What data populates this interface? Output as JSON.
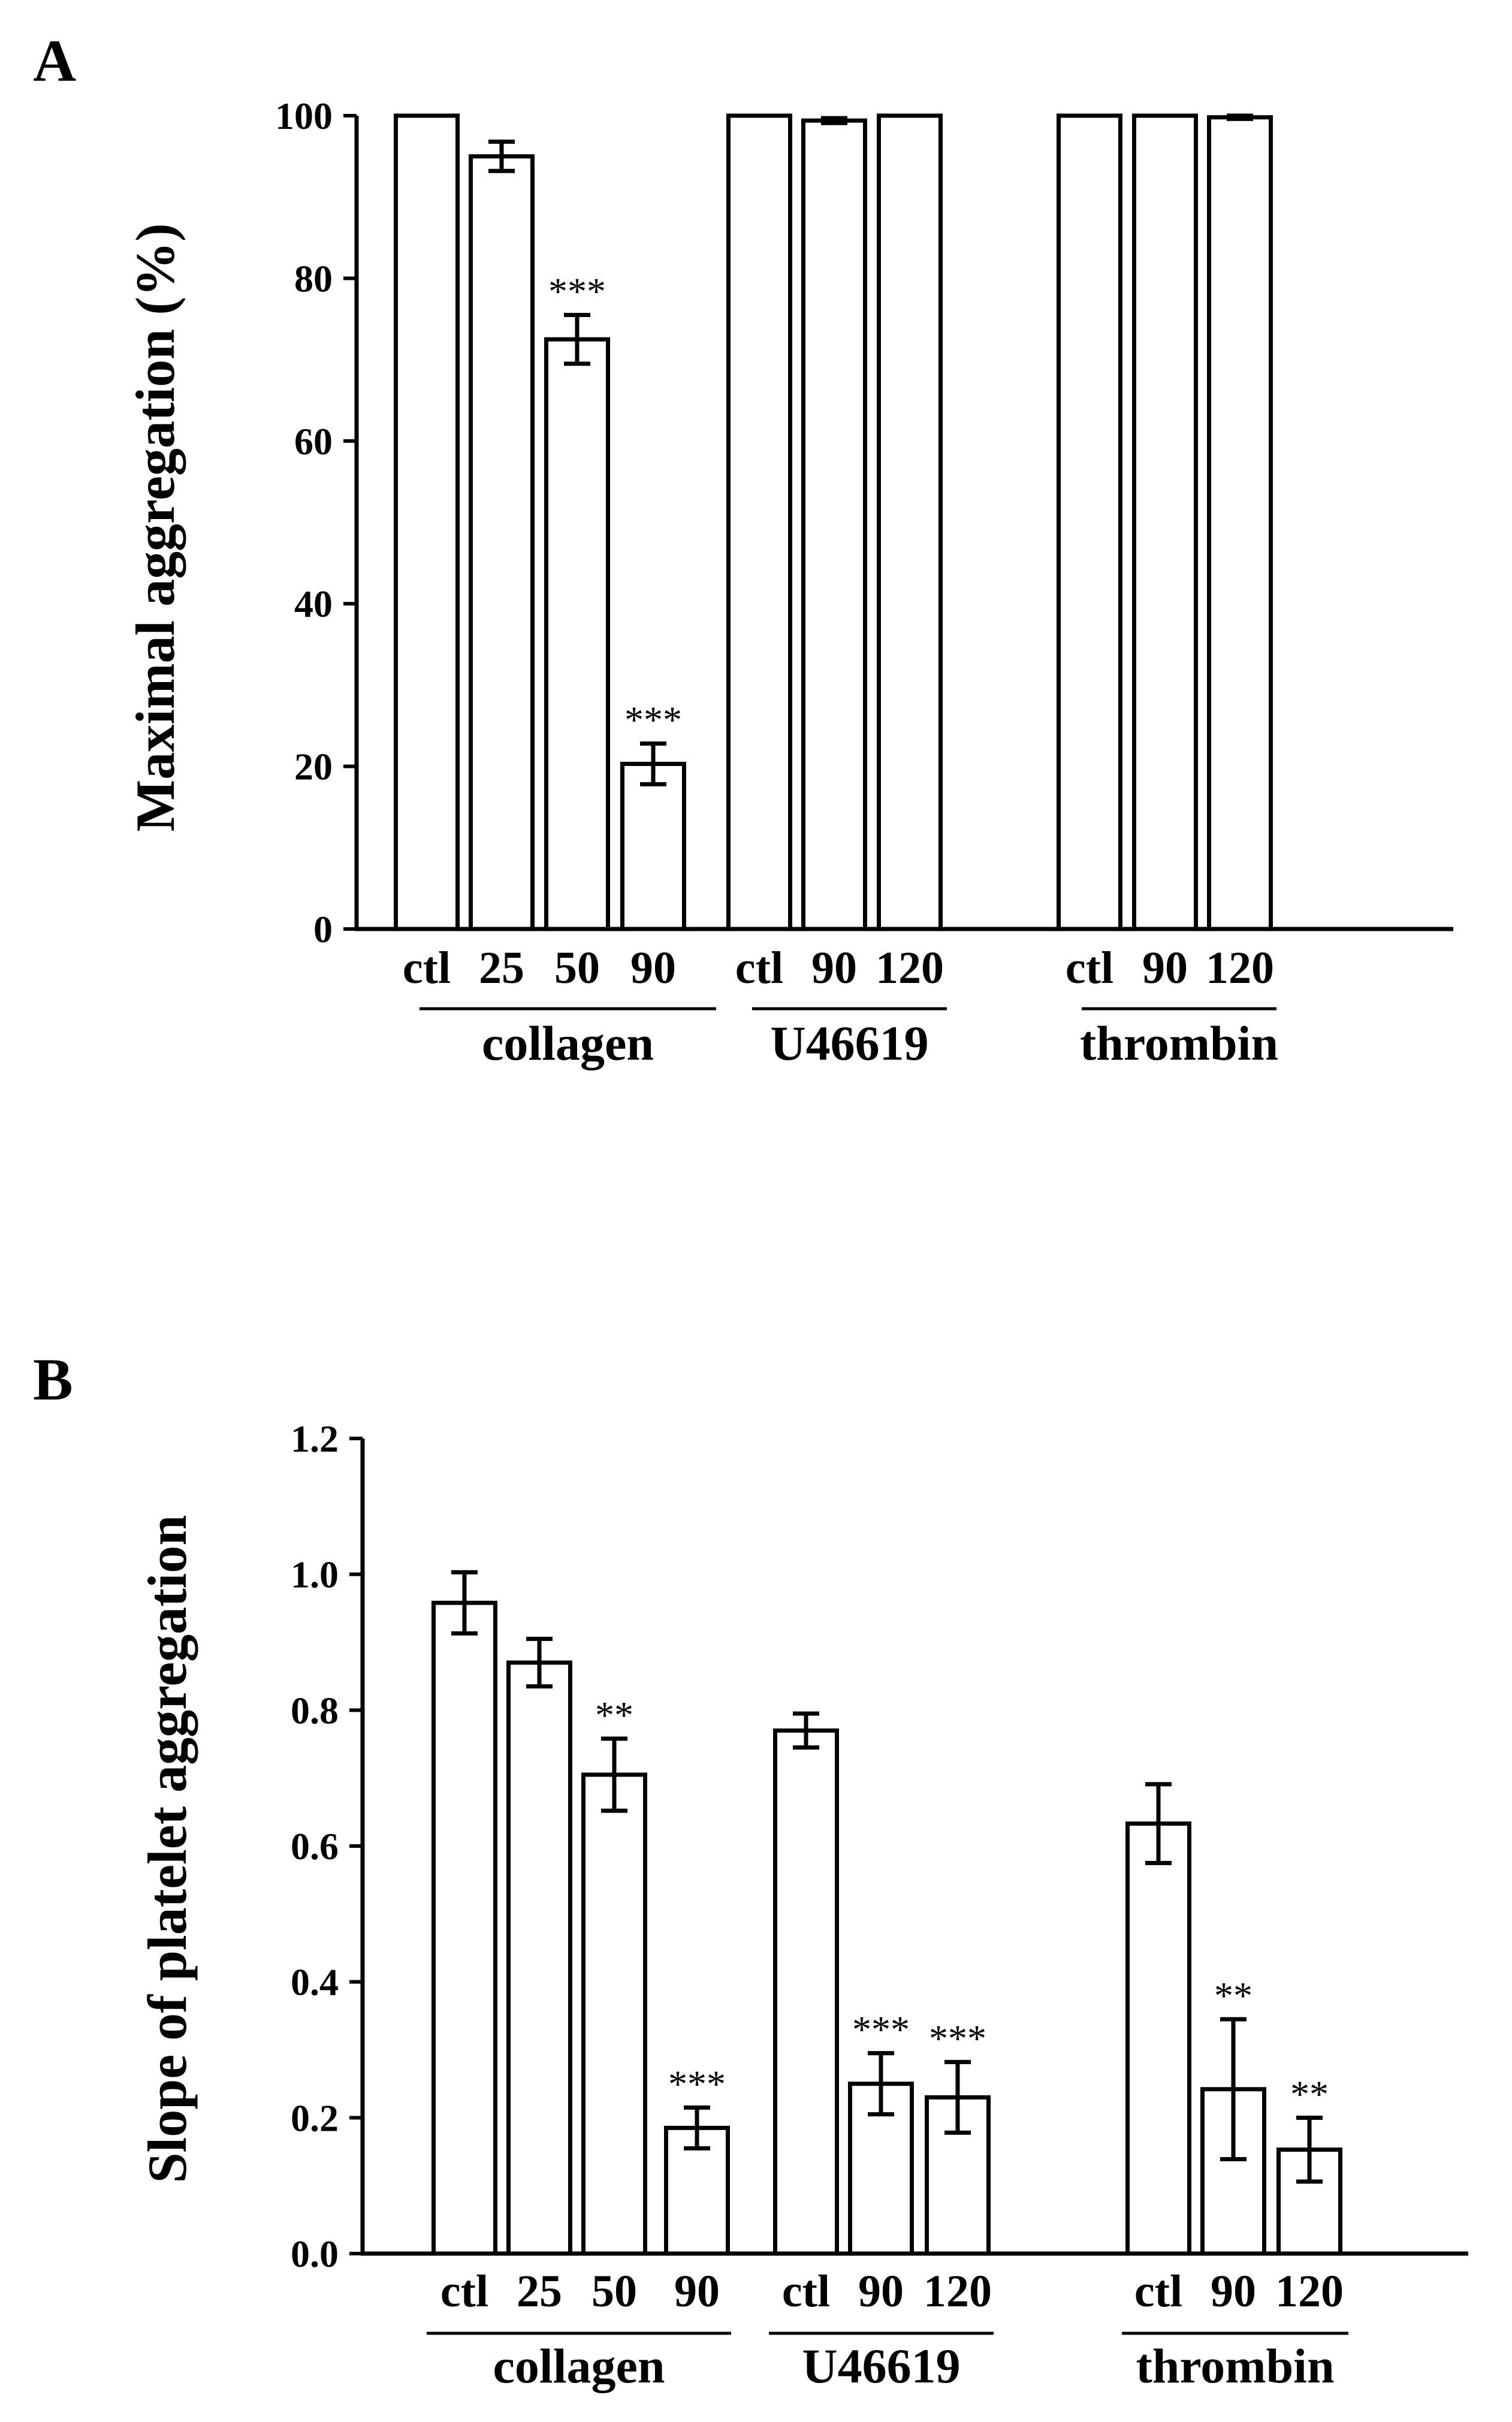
{
  "chart_data": [
    {
      "type": "bar",
      "panel_label": "A",
      "ylabel": "Maximal aggregation (%)",
      "xlabel": "",
      "ylim": [
        0,
        100
      ],
      "yticks": [
        "0",
        "20",
        "40",
        "60",
        "80",
        "100"
      ],
      "ytick_values": [
        0,
        20,
        40,
        60,
        80,
        100
      ],
      "groups": [
        {
          "name": "collagen",
          "categories": [
            "ctl",
            "25",
            "50",
            "90"
          ],
          "values": [
            100,
            95,
            72.5,
            20.3
          ],
          "errors": [
            0,
            1.8,
            3,
            2.5
          ],
          "significance": [
            "",
            "",
            "***",
            "***"
          ]
        },
        {
          "name": "U46619",
          "categories": [
            "ctl",
            "90",
            "120"
          ],
          "values": [
            100,
            99.4,
            100
          ],
          "errors": [
            0,
            0.3,
            0
          ],
          "significance": [
            "",
            "",
            ""
          ]
        },
        {
          "name": "thrombin",
          "categories": [
            "ctl",
            "90",
            "120"
          ],
          "values": [
            100,
            100,
            99.8
          ],
          "errors": [
            0,
            0,
            0.2
          ],
          "significance": [
            "",
            "",
            ""
          ]
        }
      ]
    },
    {
      "type": "bar",
      "panel_label": "B",
      "ylabel": "Slope of platelet aggregation",
      "xlabel": "",
      "ylim": [
        0,
        1.2
      ],
      "yticks": [
        "0.0",
        "0.2",
        "0.4",
        "0.6",
        "0.8",
        "1.0",
        "1.2"
      ],
      "ytick_values": [
        0,
        0.2,
        0.4,
        0.6,
        0.8,
        1.0,
        1.2
      ],
      "groups": [
        {
          "name": "collagen",
          "categories": [
            "ctl",
            "25",
            "50",
            "90"
          ],
          "values": [
            0.958,
            0.87,
            0.705,
            0.185
          ],
          "errors": [
            0.045,
            0.035,
            0.053,
            0.03
          ],
          "significance": [
            "",
            "",
            "**",
            "***"
          ]
        },
        {
          "name": "U46619",
          "categories": [
            "ctl",
            "90",
            "120"
          ],
          "values": [
            0.77,
            0.25,
            0.23
          ],
          "errors": [
            0.025,
            0.045,
            0.052
          ],
          "significance": [
            "",
            "***",
            "***"
          ]
        },
        {
          "name": "thrombin",
          "categories": [
            "ctl",
            "90",
            "120"
          ],
          "values": [
            0.633,
            0.242,
            0.153
          ],
          "errors": [
            0.058,
            0.103,
            0.047
          ],
          "significance": [
            "",
            "**",
            "**"
          ]
        }
      ]
    }
  ]
}
